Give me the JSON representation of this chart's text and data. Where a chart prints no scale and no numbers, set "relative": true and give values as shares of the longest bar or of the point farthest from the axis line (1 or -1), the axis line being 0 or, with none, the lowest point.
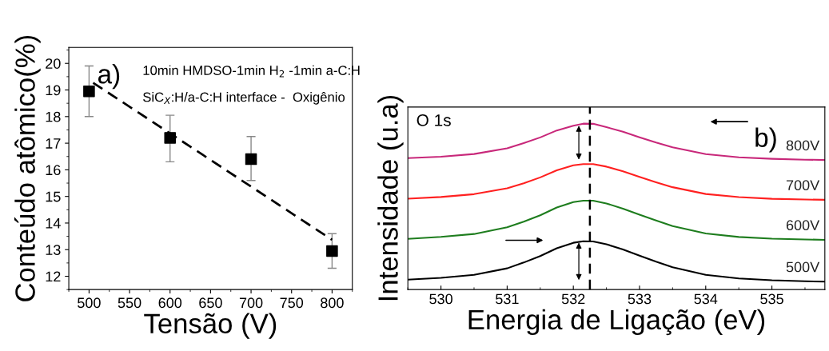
{
  "chart_data": [
    {
      "type": "scatter",
      "xlabel": "Tensão (V)",
      "ylabel": "Conteúdo atômico(%)",
      "xlim": [
        475,
        825
      ],
      "ylim": [
        11.5,
        20.6
      ],
      "xticks": [
        500,
        550,
        600,
        650,
        700,
        750,
        800
      ],
      "yticks": [
        12,
        13,
        14,
        15,
        16,
        17,
        18,
        19,
        20
      ],
      "marker": "square",
      "grid": false,
      "legend": false,
      "annotations": [
        "a)",
        "10min HMDSO-1min H$_{2}$ -1min a-C:H",
        "SiC$_{X}$:H/a-C:H interface -  Oxigênio"
      ],
      "series": [
        {
          "type": "scatter",
          "color": "#000000",
          "x": [
            500,
            600,
            700,
            800
          ],
          "values": [
            18.95,
            17.2,
            16.4,
            12.95
          ],
          "errors": [
            [
              18.0,
              19.9
            ],
            [
              16.3,
              18.05
            ],
            [
              15.6,
              17.25
            ],
            [
              12.3,
              13.6
            ]
          ]
        },
        {
          "type": "line",
          "color": "#000000",
          "line_style": "dashed",
          "marker": "none",
          "x": [
            505,
            800
          ],
          "values": [
            19.27,
            13.37
          ]
        }
      ]
    },
    {
      "type": "line",
      "relative": true,
      "xlabel": "Energia de Ligação (eV)",
      "ylabel": "Intensidade (u.a)",
      "xlim": [
        529.5,
        535.8
      ],
      "xticks": [
        530,
        531,
        532,
        533,
        534,
        535
      ],
      "tick_labels": "x",
      "grid": false,
      "legend": false,
      "marker": "none",
      "line_style": "solid",
      "x": [
        529.5,
        530,
        530.5,
        531,
        531.25,
        531.5,
        531.75,
        532,
        532.15,
        532.3,
        532.5,
        532.75,
        533,
        533.25,
        533.5,
        534,
        534.5,
        535,
        535.5,
        535.8
      ],
      "annotations": [
        "O 1s",
        "b)"
      ],
      "ref_lines": [
        {
          "axis": "x",
          "value": 532.25,
          "color": "#000000",
          "line_style": "dashed"
        }
      ],
      "series": [
        {
          "name": "800V",
          "color": "#c8287a",
          "values": [
            0.792,
            0.801,
            0.817,
            0.851,
            0.883,
            0.917,
            0.959,
            0.987,
            1.0,
            0.999,
            0.979,
            0.951,
            0.918,
            0.886,
            0.857,
            0.816,
            0.797,
            0.788,
            0.783,
            0.781
          ]
        },
        {
          "name": "700V",
          "color": "#ff2020",
          "values": [
            0.548,
            0.558,
            0.575,
            0.61,
            0.641,
            0.676,
            0.719,
            0.749,
            0.756,
            0.756,
            0.741,
            0.713,
            0.679,
            0.647,
            0.617,
            0.576,
            0.557,
            0.547,
            0.543,
            0.541
          ]
        },
        {
          "name": "600V",
          "color": "#1e7d1e",
          "values": [
            0.306,
            0.318,
            0.335,
            0.375,
            0.409,
            0.448,
            0.495,
            0.527,
            0.536,
            0.536,
            0.519,
            0.488,
            0.451,
            0.416,
            0.383,
            0.338,
            0.317,
            0.307,
            0.302,
            0.3
          ]
        },
        {
          "name": "500V",
          "color": "#000000",
          "values": [
            0.06,
            0.071,
            0.089,
            0.128,
            0.163,
            0.202,
            0.249,
            0.282,
            0.291,
            0.29,
            0.273,
            0.242,
            0.204,
            0.168,
            0.135,
            0.089,
            0.067,
            0.056,
            0.05,
            0.048
          ]
        }
      ]
    }
  ]
}
